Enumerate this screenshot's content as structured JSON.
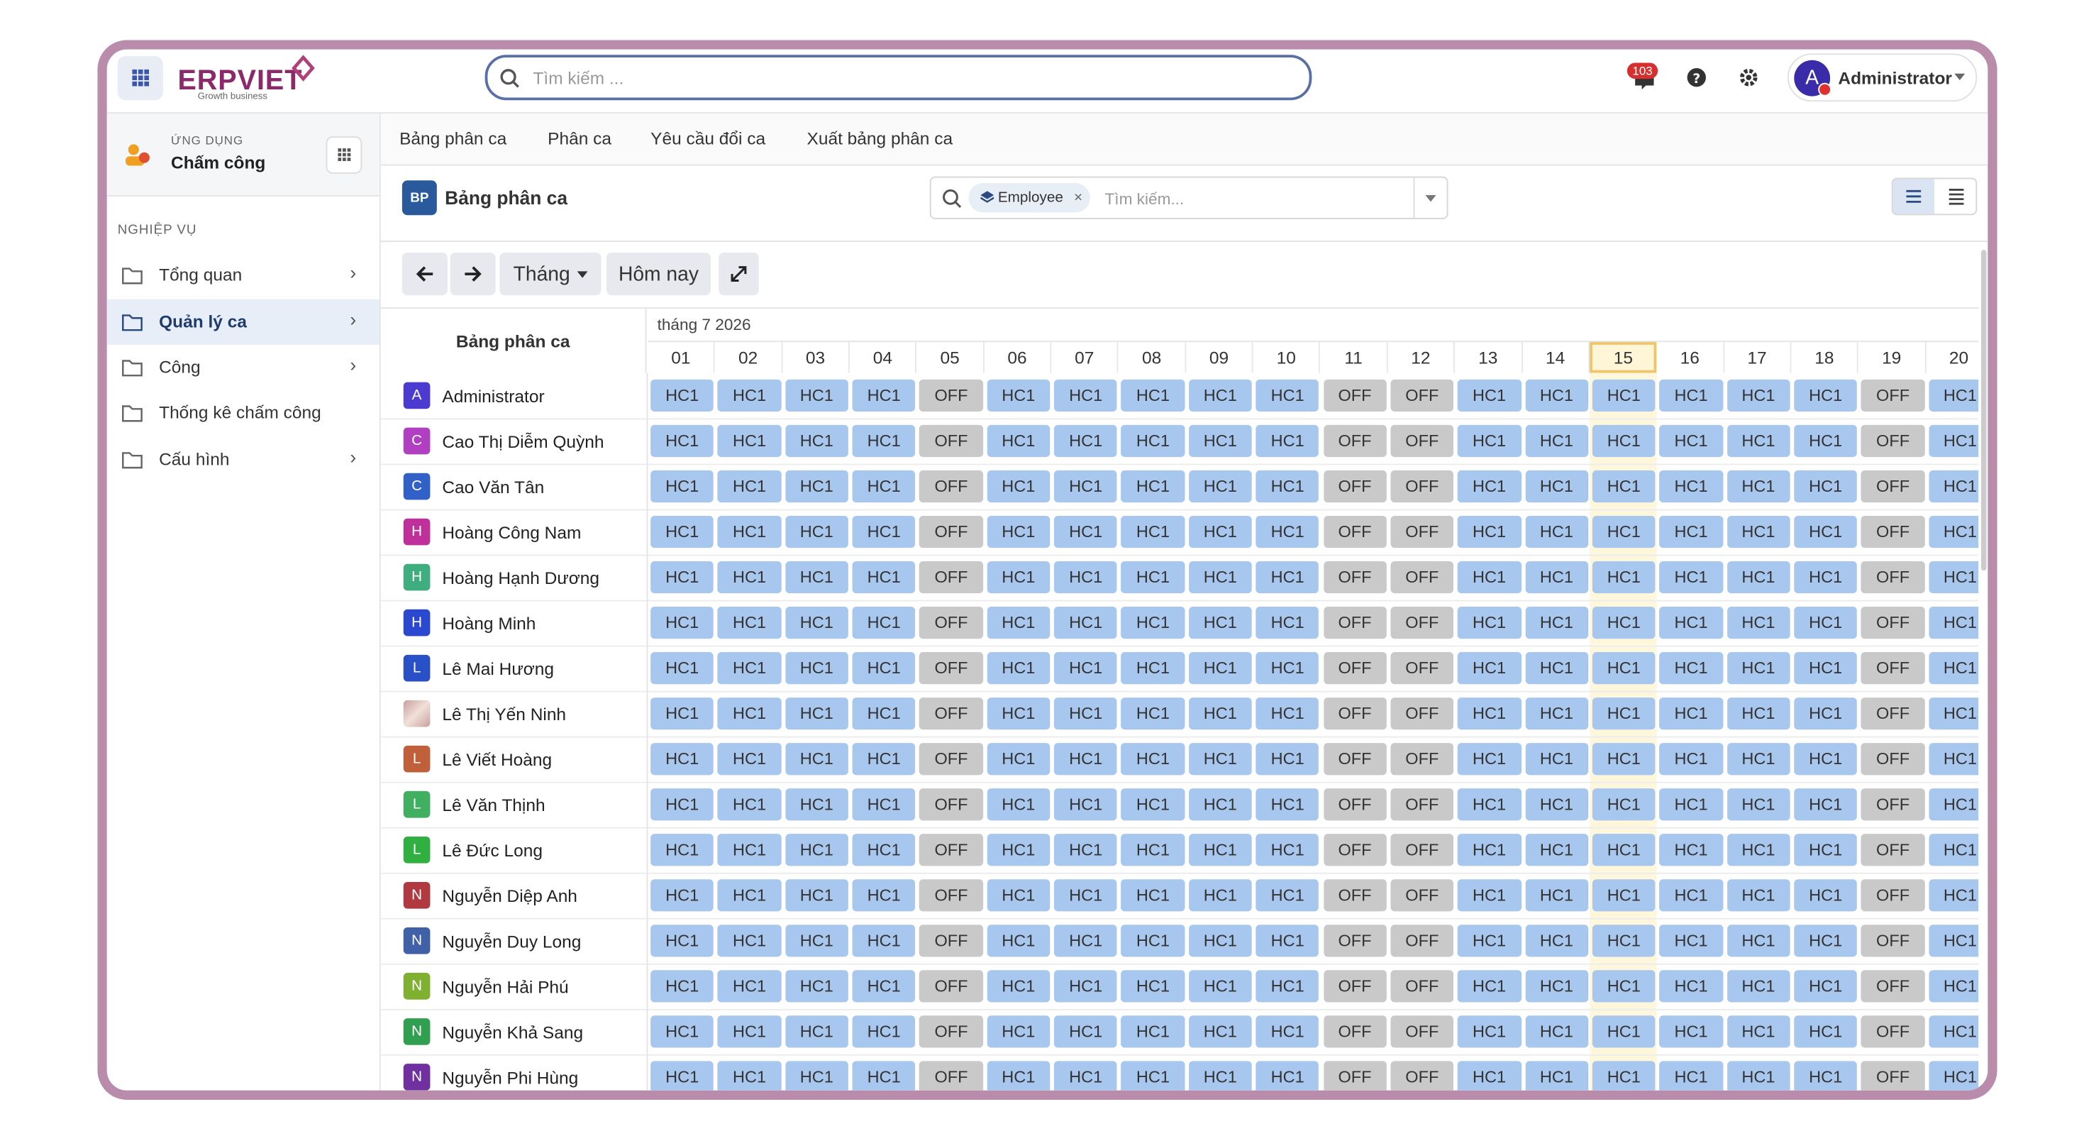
{
  "header": {
    "logo": "ERPVIET",
    "tagline": "Growth business",
    "search_placeholder": "Tìm kiếm ...",
    "notifications": "103",
    "user": "Administrator",
    "user_initial": "A"
  },
  "sidebar": {
    "app_label": "ỨNG DỤNG",
    "app_name": "Chấm công",
    "section": "NGHIỆP VỤ",
    "items": [
      {
        "label": "Tổng quan",
        "active": false,
        "expandable": true
      },
      {
        "label": "Quản lý ca",
        "active": true,
        "expandable": true
      },
      {
        "label": "Công",
        "active": false,
        "expandable": true
      },
      {
        "label": "Thống kê chấm công",
        "active": false,
        "expandable": false
      },
      {
        "label": "Cấu hình",
        "active": false,
        "expandable": true
      }
    ]
  },
  "tabs": [
    "Bảng phân ca",
    "Phân ca",
    "Yêu cầu đổi ca",
    "Xuất bảng phân ca"
  ],
  "view": {
    "badge": "BP",
    "title": "Bảng phân ca",
    "filter": "Employee",
    "search_placeholder": "Tìm kiếm..."
  },
  "toolbar": {
    "period": "Tháng",
    "today": "Hôm nay"
  },
  "schedule": {
    "header": "Bảng phân ca",
    "month": "tháng 7 2026",
    "today_index": 14,
    "days": [
      "01",
      "02",
      "03",
      "04",
      "05",
      "06",
      "07",
      "08",
      "09",
      "10",
      "11",
      "12",
      "13",
      "14",
      "15",
      "16",
      "17",
      "18",
      "19",
      "20"
    ],
    "rows": [
      {
        "initial": "A",
        "name": "Administrator",
        "color": "#4b3bd0",
        "shifts": [
          "HC1",
          "HC1",
          "HC1",
          "HC1",
          "OFF",
          "HC1",
          "HC1",
          "HC1",
          "HC1",
          "HC1",
          "OFF",
          "OFF",
          "HC1",
          "HC1",
          "HC1",
          "HC1",
          "HC1",
          "HC1",
          "OFF",
          "HC1"
        ]
      },
      {
        "initial": "C",
        "name": "Cao Thị Diễm Quỳnh",
        "color": "#b03fc2",
        "shifts": [
          "HC1",
          "HC1",
          "HC1",
          "HC1",
          "OFF",
          "HC1",
          "HC1",
          "HC1",
          "HC1",
          "HC1",
          "OFF",
          "OFF",
          "HC1",
          "HC1",
          "HC1",
          "HC1",
          "HC1",
          "HC1",
          "OFF",
          "HC1"
        ]
      },
      {
        "initial": "C",
        "name": "Cao Văn Tân",
        "color": "#3060c8",
        "shifts": [
          "HC1",
          "HC1",
          "HC1",
          "HC1",
          "OFF",
          "HC1",
          "HC1",
          "HC1",
          "HC1",
          "HC1",
          "OFF",
          "OFF",
          "HC1",
          "HC1",
          "HC1",
          "HC1",
          "HC1",
          "HC1",
          "OFF",
          "HC1"
        ]
      },
      {
        "initial": "H",
        "name": "Hoàng Công Nam",
        "color": "#c0309a",
        "shifts": [
          "HC1",
          "HC1",
          "HC1",
          "HC1",
          "OFF",
          "HC1",
          "HC1",
          "HC1",
          "HC1",
          "HC1",
          "OFF",
          "OFF",
          "HC1",
          "HC1",
          "HC1",
          "HC1",
          "HC1",
          "HC1",
          "OFF",
          "HC1"
        ]
      },
      {
        "initial": "H",
        "name": "Hoàng Hạnh Dương",
        "color": "#3fae7e",
        "shifts": [
          "HC1",
          "HC1",
          "HC1",
          "HC1",
          "OFF",
          "HC1",
          "HC1",
          "HC1",
          "HC1",
          "HC1",
          "OFF",
          "OFF",
          "HC1",
          "HC1",
          "HC1",
          "HC1",
          "HC1",
          "HC1",
          "OFF",
          "HC1"
        ]
      },
      {
        "initial": "H",
        "name": "Hoàng Minh",
        "color": "#2a48d0",
        "shifts": [
          "HC1",
          "HC1",
          "HC1",
          "HC1",
          "OFF",
          "HC1",
          "HC1",
          "HC1",
          "HC1",
          "HC1",
          "OFF",
          "OFF",
          "HC1",
          "HC1",
          "HC1",
          "HC1",
          "HC1",
          "HC1",
          "OFF",
          "HC1"
        ]
      },
      {
        "initial": "L",
        "name": "Lê Mai Hương",
        "color": "#2a50c8",
        "shifts": [
          "HC1",
          "HC1",
          "HC1",
          "HC1",
          "OFF",
          "HC1",
          "HC1",
          "HC1",
          "HC1",
          "HC1",
          "OFF",
          "OFF",
          "HC1",
          "HC1",
          "HC1",
          "HC1",
          "HC1",
          "HC1",
          "OFF",
          "HC1"
        ]
      },
      {
        "photo": true,
        "name": "Lê Thị Yến Ninh",
        "color": "#c9a0a0",
        "shifts": [
          "HC1",
          "HC1",
          "HC1",
          "HC1",
          "OFF",
          "HC1",
          "HC1",
          "HC1",
          "HC1",
          "HC1",
          "OFF",
          "OFF",
          "HC1",
          "HC1",
          "HC1",
          "HC1",
          "HC1",
          "HC1",
          "OFF",
          "HC1"
        ]
      },
      {
        "initial": "L",
        "name": "Lê Viết Hoàng",
        "color": "#c0603a",
        "shifts": [
          "HC1",
          "HC1",
          "HC1",
          "HC1",
          "OFF",
          "HC1",
          "HC1",
          "HC1",
          "HC1",
          "HC1",
          "OFF",
          "OFF",
          "HC1",
          "HC1",
          "HC1",
          "HC1",
          "HC1",
          "HC1",
          "OFF",
          "HC1"
        ]
      },
      {
        "initial": "L",
        "name": "Lê Văn Thịnh",
        "color": "#40b060",
        "shifts": [
          "HC1",
          "HC1",
          "HC1",
          "HC1",
          "OFF",
          "HC1",
          "HC1",
          "HC1",
          "HC1",
          "HC1",
          "OFF",
          "OFF",
          "HC1",
          "HC1",
          "HC1",
          "HC1",
          "HC1",
          "HC1",
          "OFF",
          "HC1"
        ]
      },
      {
        "initial": "L",
        "name": "Lê Đức Long",
        "color": "#30b040",
        "shifts": [
          "HC1",
          "HC1",
          "HC1",
          "HC1",
          "OFF",
          "HC1",
          "HC1",
          "HC1",
          "HC1",
          "HC1",
          "OFF",
          "OFF",
          "HC1",
          "HC1",
          "HC1",
          "HC1",
          "HC1",
          "HC1",
          "OFF",
          "HC1"
        ]
      },
      {
        "initial": "N",
        "name": "Nguyễn Diệp Anh",
        "color": "#b03a40",
        "shifts": [
          "HC1",
          "HC1",
          "HC1",
          "HC1",
          "OFF",
          "HC1",
          "HC1",
          "HC1",
          "HC1",
          "HC1",
          "OFF",
          "OFF",
          "HC1",
          "HC1",
          "HC1",
          "HC1",
          "HC1",
          "HC1",
          "OFF",
          "HC1"
        ]
      },
      {
        "initial": "N",
        "name": "Nguyễn Duy Long",
        "color": "#4060a8",
        "shifts": [
          "HC1",
          "HC1",
          "HC1",
          "HC1",
          "OFF",
          "HC1",
          "HC1",
          "HC1",
          "HC1",
          "HC1",
          "OFF",
          "OFF",
          "HC1",
          "HC1",
          "HC1",
          "HC1",
          "HC1",
          "HC1",
          "OFF",
          "HC1"
        ]
      },
      {
        "initial": "N",
        "name": "Nguyễn Hải Phú",
        "color": "#80b030",
        "shifts": [
          "HC1",
          "HC1",
          "HC1",
          "HC1",
          "OFF",
          "HC1",
          "HC1",
          "HC1",
          "HC1",
          "HC1",
          "OFF",
          "OFF",
          "HC1",
          "HC1",
          "HC1",
          "HC1",
          "HC1",
          "HC1",
          "OFF",
          "HC1"
        ]
      },
      {
        "initial": "N",
        "name": "Nguyễn Khả Sang",
        "color": "#30a050",
        "shifts": [
          "HC1",
          "HC1",
          "HC1",
          "HC1",
          "OFF",
          "HC1",
          "HC1",
          "HC1",
          "HC1",
          "HC1",
          "OFF",
          "OFF",
          "HC1",
          "HC1",
          "HC1",
          "HC1",
          "HC1",
          "HC1",
          "OFF",
          "HC1"
        ]
      },
      {
        "initial": "N",
        "name": "Nguyễn Phi Hùng",
        "color": "#7030a0",
        "shifts": [
          "HC1",
          "HC1",
          "HC1",
          "HC1",
          "OFF",
          "HC1",
          "HC1",
          "HC1",
          "HC1",
          "HC1",
          "OFF",
          "OFF",
          "HC1",
          "HC1",
          "HC1",
          "HC1",
          "HC1",
          "HC1",
          "OFF",
          "HC1"
        ]
      }
    ]
  }
}
